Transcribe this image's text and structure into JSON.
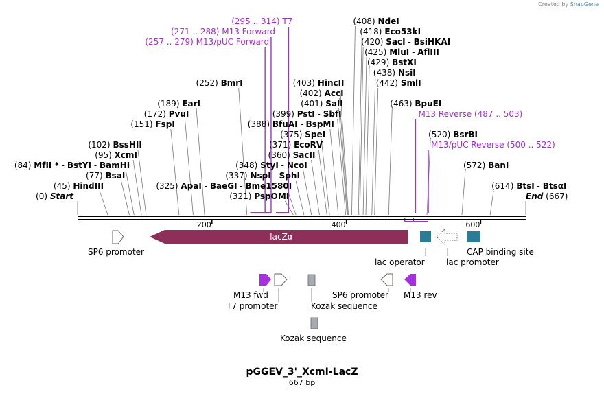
{
  "credit": {
    "prefix": "Created by",
    "brand": "SnapGene"
  },
  "plasmid": {
    "name": "pGGEV_3'_XcmI-LacZ",
    "size": "667 bp",
    "length": 667
  },
  "ends": [
    {
      "pos": "(0)",
      "name": "Start",
      "at": 0,
      "row": 0
    },
    {
      "pos": "(667)",
      "name": "End",
      "at": 667,
      "row": 0,
      "right": true
    }
  ],
  "sites": [
    {
      "pos": "(45)",
      "names": [
        "HindIII"
      ],
      "at": 45,
      "row": 1
    },
    {
      "pos": "(77)",
      "names": [
        "BsaI"
      ],
      "at": 77,
      "row": 2
    },
    {
      "pos": "(84)",
      "names": [
        "MfII *",
        "BstYI",
        "BamHI"
      ],
      "at": 84,
      "row": 3
    },
    {
      "pos": "(95)",
      "names": [
        "XcmI"
      ],
      "at": 95,
      "row": 4
    },
    {
      "pos": "(102)",
      "names": [
        "BssHII"
      ],
      "at": 102,
      "row": 5
    },
    {
      "pos": "(151)",
      "names": [
        "FspI"
      ],
      "at": 151,
      "row": 7
    },
    {
      "pos": "(172)",
      "names": [
        "PvuI"
      ],
      "at": 172,
      "row": 8
    },
    {
      "pos": "(189)",
      "names": [
        "EarI"
      ],
      "at": 189,
      "row": 9
    },
    {
      "pos": "(252)",
      "names": [
        "BmrI"
      ],
      "at": 252,
      "row": 11
    },
    {
      "pos": "(321)",
      "names": [
        "PspOMI"
      ],
      "at": 321,
      "row": 0
    },
    {
      "pos": "(325)",
      "names": [
        "ApaI",
        "BaeGI",
        "Bme1580I"
      ],
      "at": 325,
      "row": 1
    },
    {
      "pos": "(337)",
      "names": [
        "NspI",
        "SphI"
      ],
      "at": 337,
      "row": 2
    },
    {
      "pos": "(348)",
      "names": [
        "StyI",
        "NcoI"
      ],
      "at": 348,
      "row": 3
    },
    {
      "pos": "(360)",
      "names": [
        "SacII"
      ],
      "at": 360,
      "row": 4
    },
    {
      "pos": "(371)",
      "names": [
        "EcoRV"
      ],
      "at": 371,
      "row": 5
    },
    {
      "pos": "(375)",
      "names": [
        "SpeI"
      ],
      "at": 375,
      "row": 6
    },
    {
      "pos": "(388)",
      "names": [
        "BfuAI",
        "BspMI"
      ],
      "at": 388,
      "row": 7
    },
    {
      "pos": "(399)",
      "names": [
        "PstI",
        "SbfI"
      ],
      "at": 399,
      "row": 8
    },
    {
      "pos": "(401)",
      "names": [
        "SalI"
      ],
      "at": 401,
      "row": 9
    },
    {
      "pos": "(402)",
      "names": [
        "AccI"
      ],
      "at": 402,
      "row": 10
    },
    {
      "pos": "(403)",
      "names": [
        "HincII"
      ],
      "at": 403,
      "row": 11
    },
    {
      "pos": "(408)",
      "names": [
        "NdeI"
      ],
      "at": 408,
      "row": 17,
      "after": true
    },
    {
      "pos": "(418)",
      "names": [
        "Eco53kI"
      ],
      "at": 418,
      "row": 16,
      "after": true
    },
    {
      "pos": "(420)",
      "names": [
        "SacI",
        "BsiHKAI"
      ],
      "at": 420,
      "row": 15,
      "after": true
    },
    {
      "pos": "(425)",
      "names": [
        "MluI",
        "AflIII"
      ],
      "at": 425,
      "row": 14,
      "after": true
    },
    {
      "pos": "(429)",
      "names": [
        "BstXI"
      ],
      "at": 429,
      "row": 13,
      "after": true
    },
    {
      "pos": "(438)",
      "names": [
        "NsiI"
      ],
      "at": 438,
      "row": 12,
      "after": true
    },
    {
      "pos": "(442)",
      "names": [
        "SmlI"
      ],
      "at": 442,
      "row": 11,
      "after": true
    },
    {
      "pos": "(463)",
      "names": [
        "BpuEI"
      ],
      "at": 463,
      "row": 9,
      "after": true
    },
    {
      "pos": "(520)",
      "names": [
        "BsrBI"
      ],
      "at": 520,
      "row": 6,
      "after": true
    },
    {
      "pos": "(572)",
      "names": [
        "BanI"
      ],
      "at": 572,
      "row": 3,
      "after": true
    },
    {
      "pos": "(614)",
      "names": [
        "BtsI",
        "BtsαI"
      ],
      "at": 614,
      "row": 1,
      "after": true
    }
  ],
  "primers": [
    {
      "label": "(295 .. 314)  T7",
      "start": 295,
      "end": 314,
      "row": 17,
      "after": false
    },
    {
      "label": "(271 .. 288)  M13 Forward",
      "start": 271,
      "end": 288,
      "row": 16,
      "after": false
    },
    {
      "label": "(257 .. 279)  M13/pUC Forward",
      "start": 257,
      "end": 279,
      "row": 15,
      "after": false
    },
    {
      "label": "M13 Reverse   (487 .. 503)",
      "start": 487,
      "end": 503,
      "row": 8,
      "after": true
    },
    {
      "label": "M13/pUC Reverse   (500 .. 522)",
      "start": 500,
      "end": 522,
      "row": 5,
      "after": true
    }
  ],
  "ticks": [
    "200",
    "400",
    "600"
  ],
  "tick_values": [
    200,
    400,
    600
  ],
  "features": [
    {
      "name": "SP6 promoter",
      "kind": "promoter"
    },
    {
      "name": "lacZα",
      "kind": "cds"
    },
    {
      "name": "lac operator",
      "kind": "operator"
    },
    {
      "name": "lac promoter",
      "kind": "promoter"
    },
    {
      "name": "CAP binding site",
      "kind": "site"
    },
    {
      "name": "M13 fwd",
      "kind": "primer_bind"
    },
    {
      "name": "T7 promoter",
      "kind": "promoter"
    },
    {
      "name": "Kozak sequence",
      "kind": "misc"
    },
    {
      "name": "SP6 promoter",
      "kind": "promoter"
    },
    {
      "name": "M13 rev",
      "kind": "primer_bind"
    },
    {
      "name": "Kozak sequence",
      "kind": "misc"
    }
  ],
  "colors": {
    "primer": "#a22fd2",
    "lacz": "#8e2f5a",
    "teal": "#2b7d96",
    "gray": "#a6aab2",
    "purple": "#a62fe0"
  }
}
